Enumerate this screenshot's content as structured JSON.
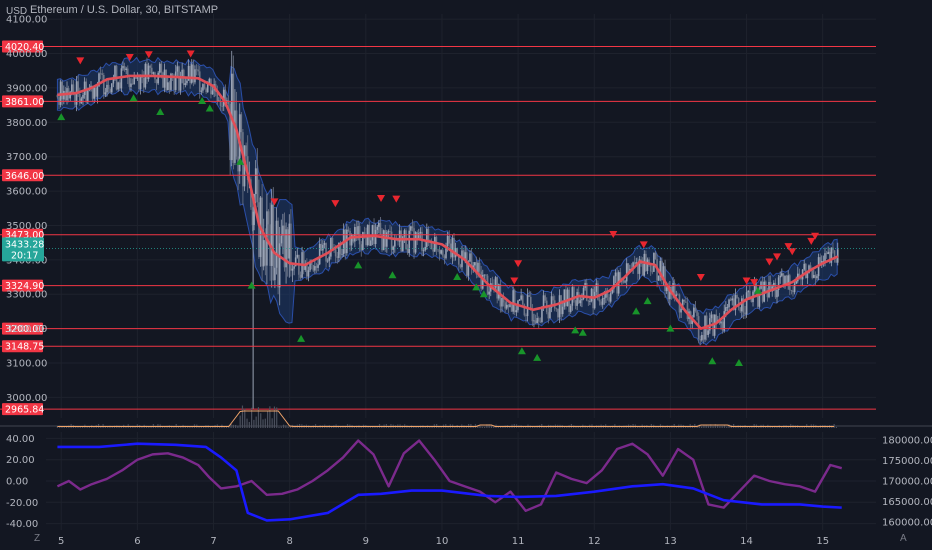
{
  "header": {
    "title": "Ethereum / U.S. Dollar, 30, BITSTAMP",
    "currency": "USD"
  },
  "price_badge": {
    "value": "3433.28",
    "countdown": "20:17"
  },
  "corner_left": "Z",
  "corner_right": "A",
  "colors": {
    "background": "#131722",
    "level_line": "#f23645",
    "ma": "#e04e57",
    "band_fill": "#1e3a6e",
    "band_edge": "#2a4ea8",
    "sell_marker": "#e8262f",
    "buy_marker": "#18942a",
    "badge": "#26a69a",
    "volume_line": "#f0a46a",
    "osc_blue": "#1a1aff",
    "osc_purple": "#7b2a8c"
  },
  "chart_data": [
    {
      "type": "candlestick",
      "title": "Ethereum / U.S. Dollar, 30, BITSTAMP",
      "ylabel": "USD",
      "ylim": [
        2940,
        4115
      ],
      "y_ticks": [
        3000,
        3100,
        3200,
        3300,
        3400,
        3500,
        3600,
        3700,
        3800,
        3900,
        4000,
        4100
      ],
      "y_tick_labels": [
        "3000.00",
        "3100.00",
        "3200.00",
        "3300.00",
        "3400.00",
        "3500.00",
        "3600.00",
        "3700.00",
        "3800.00",
        "3900.00",
        "4000.00",
        "4100.00"
      ],
      "x_ticks": [
        {
          "t": 5,
          "label": "5"
        },
        {
          "t": 6,
          "label": "6"
        },
        {
          "t": 7,
          "label": "7"
        },
        {
          "t": 8,
          "label": "8"
        },
        {
          "t": 9,
          "label": "9"
        },
        {
          "t": 10,
          "label": "10"
        },
        {
          "t": 11,
          "label": "11"
        },
        {
          "t": 12,
          "label": "12"
        },
        {
          "t": 13,
          "label": "13"
        },
        {
          "t": 14,
          "label": "14"
        },
        {
          "t": 15,
          "label": "15"
        }
      ],
      "xlim": [
        4.8,
        15.7
      ],
      "horizontal_levels": [
        {
          "price": 4020.4,
          "label": "4020.40"
        },
        {
          "price": 3861.0,
          "label": "3861.00"
        },
        {
          "price": 3646.0,
          "label": "3646.00"
        },
        {
          "price": 3473.0,
          "label": "3473.00"
        },
        {
          "price": 3324.9,
          "label": "3324.90"
        },
        {
          "price": 3200.0,
          "label": "3200.00"
        },
        {
          "price": 3148.75,
          "label": "3148.75"
        },
        {
          "price": 2965.84,
          "label": "2965.84"
        }
      ],
      "current_price": 3433.28,
      "moving_average": [
        [
          4.95,
          3880
        ],
        [
          5.2,
          3885
        ],
        [
          5.4,
          3900
        ],
        [
          5.6,
          3925
        ],
        [
          5.9,
          3935
        ],
        [
          6.2,
          3935
        ],
        [
          6.5,
          3932
        ],
        [
          6.8,
          3928
        ],
        [
          7.0,
          3905
        ],
        [
          7.15,
          3860
        ],
        [
          7.3,
          3780
        ],
        [
          7.45,
          3650
        ],
        [
          7.6,
          3500
        ],
        [
          7.8,
          3420
        ],
        [
          8.0,
          3390
        ],
        [
          8.2,
          3385
        ],
        [
          8.5,
          3420
        ],
        [
          8.8,
          3465
        ],
        [
          9.1,
          3470
        ],
        [
          9.4,
          3460
        ],
        [
          9.7,
          3460
        ],
        [
          10.0,
          3445
        ],
        [
          10.3,
          3400
        ],
        [
          10.6,
          3330
        ],
        [
          10.9,
          3275
        ],
        [
          11.2,
          3255
        ],
        [
          11.5,
          3270
        ],
        [
          11.8,
          3295
        ],
        [
          12.0,
          3290
        ],
        [
          12.2,
          3310
        ],
        [
          12.4,
          3350
        ],
        [
          12.6,
          3395
        ],
        [
          12.8,
          3385
        ],
        [
          13.0,
          3310
        ],
        [
          13.2,
          3250
        ],
        [
          13.4,
          3200
        ],
        [
          13.6,
          3215
        ],
        [
          13.8,
          3255
        ],
        [
          14.0,
          3285
        ],
        [
          14.3,
          3310
        ],
        [
          14.6,
          3335
        ],
        [
          14.8,
          3365
        ],
        [
          15.0,
          3390
        ],
        [
          15.2,
          3410
        ]
      ],
      "band_width": 45,
      "band_width_crash": 150,
      "sell_signals": [
        [
          5.25,
          3980
        ],
        [
          5.9,
          3990
        ],
        [
          6.15,
          3998
        ],
        [
          6.7,
          4000
        ],
        [
          7.8,
          3570
        ],
        [
          8.6,
          3565
        ],
        [
          9.2,
          3580
        ],
        [
          9.4,
          3578
        ],
        [
          12.25,
          3475
        ],
        [
          11.0,
          3390
        ],
        [
          10.95,
          3340
        ],
        [
          12.65,
          3445
        ],
        [
          13.4,
          3350
        ],
        [
          14.0,
          3340
        ],
        [
          14.1,
          3335
        ],
        [
          14.3,
          3395
        ],
        [
          14.4,
          3410
        ],
        [
          14.55,
          3440
        ],
        [
          14.6,
          3425
        ],
        [
          14.85,
          3455
        ],
        [
          14.9,
          3470
        ]
      ],
      "buy_signals": [
        [
          5.0,
          3815
        ],
        [
          5.95,
          3870
        ],
        [
          6.3,
          3830
        ],
        [
          6.85,
          3862
        ],
        [
          6.95,
          3840
        ],
        [
          7.35,
          3685
        ],
        [
          7.5,
          3325
        ],
        [
          8.15,
          3170
        ],
        [
          8.9,
          3384
        ],
        [
          9.35,
          3355
        ],
        [
          10.2,
          3350
        ],
        [
          10.45,
          3320
        ],
        [
          10.55,
          3300
        ],
        [
          11.75,
          3195
        ],
        [
          11.85,
          3188
        ],
        [
          11.05,
          3134
        ],
        [
          11.25,
          3115
        ],
        [
          12.55,
          3250
        ],
        [
          12.7,
          3280
        ],
        [
          13.0,
          3200
        ],
        [
          13.55,
          3105
        ],
        [
          13.9,
          3100
        ],
        [
          14.15,
          3310
        ]
      ],
      "volume_spike_region": [
        7.35,
        7.85
      ]
    },
    {
      "type": "line",
      "y_ticks": [
        -40,
        -20,
        0,
        20,
        40
      ],
      "y_tick_labels": [
        "-40.00",
        "-20.00",
        "0.00",
        "20.00",
        "40.00"
      ],
      "ylim": [
        -46,
        46
      ],
      "right_axis": {
        "ylim": [
          158000,
          182000
        ],
        "ticks": [
          160000,
          165000,
          170000,
          175000,
          180000
        ],
        "tick_labels": [
          "160000.00",
          "165000.00",
          "170000.00",
          "175000.00",
          "180000.00"
        ]
      },
      "series": [
        {
          "color": "#7b2a8c",
          "x": [
            4.95,
            5.1,
            5.25,
            5.4,
            5.6,
            5.8,
            6.0,
            6.2,
            6.4,
            6.6,
            6.8,
            6.95,
            7.1,
            7.3,
            7.5,
            7.7,
            7.9,
            8.1,
            8.3,
            8.5,
            8.7,
            8.9,
            9.1,
            9.3,
            9.5,
            9.7,
            9.9,
            10.1,
            10.3,
            10.5,
            10.7,
            10.9,
            11.1,
            11.3,
            11.5,
            11.7,
            11.9,
            12.1,
            12.3,
            12.5,
            12.7,
            12.9,
            13.1,
            13.3,
            13.5,
            13.7,
            13.9,
            14.1,
            14.3,
            14.5,
            14.7,
            14.9,
            15.1,
            15.25
          ],
          "y": [
            -5,
            0,
            -8,
            -3,
            2,
            10,
            20,
            25,
            26,
            22,
            15,
            3,
            -7,
            -5,
            0,
            -13,
            -12,
            -8,
            0,
            10,
            22,
            38,
            25,
            -5,
            26,
            38,
            20,
            0,
            -5,
            -10,
            -20,
            -10,
            -28,
            -22,
            8,
            2,
            -2,
            10,
            30,
            35,
            25,
            5,
            30,
            20,
            -22,
            -25,
            -10,
            5,
            0,
            -3,
            -5,
            -10,
            15,
            12
          ]
        },
        {
          "color": "#1a1aff",
          "x": [
            4.95,
            5.5,
            6.0,
            6.5,
            6.9,
            7.1,
            7.3,
            7.45,
            7.7,
            8.0,
            8.5,
            8.9,
            9.2,
            9.6,
            10.0,
            10.6,
            11.0,
            11.5,
            12.0,
            12.5,
            12.9,
            13.3,
            13.7,
            14.2,
            14.7,
            15.0,
            15.25
          ],
          "y": [
            32,
            32,
            35,
            34,
            32,
            22,
            10,
            -30,
            -37,
            -36,
            -30,
            -13,
            -12,
            -9,
            -9,
            -14,
            -15,
            -14,
            -10,
            -5,
            -3,
            -7,
            -18,
            -22,
            -22,
            -24,
            -25
          ]
        }
      ]
    }
  ]
}
